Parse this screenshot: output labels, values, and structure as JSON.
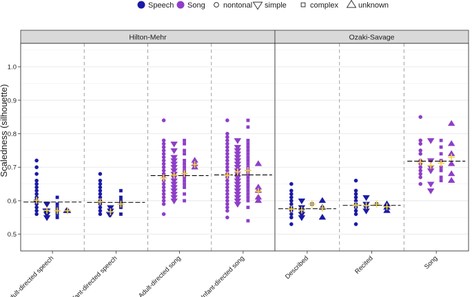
{
  "chart_data": {
    "type": "scatter",
    "ylabel": "Scaledness (silhouette)",
    "xlabel": "",
    "ylim": [
      0.45,
      1.07
    ],
    "yticks": [
      0.5,
      0.6,
      0.7,
      0.8,
      0.9,
      1.0
    ],
    "ytick_labels": [
      "0.5",
      "0.6",
      "0.7",
      "0.8",
      "0.9",
      "1.0"
    ],
    "grid": true,
    "legend": {
      "placement": "top-center",
      "color_entries": [
        {
          "label": "Speech",
          "color": "#1a1aa6"
        },
        {
          "label": "Song",
          "color": "#8e3ec8"
        }
      ],
      "shape_entries": [
        {
          "label": "nontonal",
          "shape": "circle"
        },
        {
          "label": "simple",
          "shape": "triangle-down"
        },
        {
          "label": "complex",
          "shape": "square"
        },
        {
          "label": "unknown",
          "shape": "triangle-up"
        }
      ]
    },
    "colors": {
      "Speech": "#1a1aa6",
      "Song": "#8e3ec8",
      "mean": "#f3d43a",
      "median_line": "#000000"
    },
    "shapes": [
      "nontonal",
      "simple",
      "complex",
      "unknown"
    ],
    "panels": [
      {
        "name": "Hilton-Mehr",
        "categories": [
          {
            "label": "Adult-directed speech",
            "type": "Speech",
            "median": 0.596,
            "groups": [
              {
                "shape": "nontonal",
                "values": [
                  0.72,
                  0.7,
                  0.68,
                  0.66,
                  0.65,
                  0.64,
                  0.63,
                  0.62,
                  0.61,
                  0.6,
                  0.6,
                  0.59,
                  0.58,
                  0.57,
                  0.56
                ],
                "mean": 0.601
              },
              {
                "shape": "simple",
                "values": [
                  0.59,
                  0.57,
                  0.57,
                  0.56,
                  0.55
                ],
                "mean": 0.571
              },
              {
                "shape": "complex",
                "values": [
                  0.61,
                  0.59,
                  0.58,
                  0.57,
                  0.56,
                  0.55
                ],
                "mean": 0.57
              },
              {
                "shape": "unknown",
                "values": [
                  0.57,
                  0.57
                ],
                "mean": 0.57
              }
            ]
          },
          {
            "label": "Infant-directed speech",
            "type": "Speech",
            "median": 0.595,
            "groups": [
              {
                "shape": "nontonal",
                "values": [
                  0.68,
                  0.66,
                  0.65,
                  0.64,
                  0.63,
                  0.62,
                  0.61,
                  0.6,
                  0.59,
                  0.58,
                  0.57,
                  0.56
                ],
                "mean": 0.597
              },
              {
                "shape": "simple",
                "values": [
                  0.58,
                  0.57,
                  0.56,
                  0.56
                ],
                "mean": 0.567
              },
              {
                "shape": "complex",
                "values": [
                  0.63,
                  0.61,
                  0.6,
                  0.59,
                  0.58,
                  0.56
                ],
                "mean": 0.59
              },
              {
                "shape": "unknown",
                "values": [],
                "mean": null
              }
            ]
          },
          {
            "label": "Adult-directed song",
            "type": "Song",
            "median": 0.675,
            "groups": [
              {
                "shape": "nontonal",
                "values": [
                  0.84,
                  0.78,
                  0.77,
                  0.76,
                  0.75,
                  0.74,
                  0.73,
                  0.72,
                  0.71,
                  0.7,
                  0.69,
                  0.68,
                  0.67,
                  0.66,
                  0.65,
                  0.64,
                  0.63,
                  0.62,
                  0.61,
                  0.6,
                  0.59,
                  0.56
                ],
                "mean": 0.668
              },
              {
                "shape": "simple",
                "values": [
                  0.77,
                  0.75,
                  0.73,
                  0.72,
                  0.71,
                  0.7,
                  0.69,
                  0.68,
                  0.67,
                  0.66,
                  0.65,
                  0.64,
                  0.63,
                  0.62,
                  0.61,
                  0.6
                ],
                "mean": 0.676
              },
              {
                "shape": "complex",
                "values": [
                  0.78,
                  0.77,
                  0.75,
                  0.74,
                  0.72,
                  0.71,
                  0.7,
                  0.69,
                  0.68,
                  0.67,
                  0.66,
                  0.65,
                  0.64,
                  0.62,
                  0.6
                ],
                "mean": 0.681
              },
              {
                "shape": "unknown",
                "values": [
                  0.72,
                  0.71,
                  0.7
                ],
                "mean": 0.708
              }
            ]
          },
          {
            "label": "Infant-directed song",
            "type": "Song",
            "median": 0.677,
            "groups": [
              {
                "shape": "nontonal",
                "values": [
                  0.84,
                  0.8,
                  0.79,
                  0.78,
                  0.77,
                  0.76,
                  0.75,
                  0.74,
                  0.73,
                  0.72,
                  0.71,
                  0.7,
                  0.69,
                  0.68,
                  0.67,
                  0.66,
                  0.65,
                  0.64,
                  0.63,
                  0.62,
                  0.61,
                  0.6,
                  0.59,
                  0.58,
                  0.57,
                  0.55
                ],
                "mean": 0.676
              },
              {
                "shape": "simple",
                "values": [
                  0.78,
                  0.76,
                  0.75,
                  0.74,
                  0.73,
                  0.72,
                  0.71,
                  0.7,
                  0.69,
                  0.68,
                  0.67,
                  0.66,
                  0.65,
                  0.64,
                  0.63,
                  0.62,
                  0.61,
                  0.6,
                  0.59
                ],
                "mean": 0.686
              },
              {
                "shape": "complex",
                "values": [
                  0.84,
                  0.82,
                  0.78,
                  0.77,
                  0.76,
                  0.75,
                  0.74,
                  0.73,
                  0.72,
                  0.71,
                  0.7,
                  0.69,
                  0.68,
                  0.67,
                  0.66,
                  0.65,
                  0.64,
                  0.63,
                  0.62,
                  0.61,
                  0.6,
                  0.58,
                  0.54
                ],
                "mean": 0.69
              },
              {
                "shape": "unknown",
                "values": [
                  0.71,
                  0.64,
                  0.63,
                  0.61,
                  0.6
                ],
                "mean": 0.628
              }
            ]
          }
        ]
      },
      {
        "name": "Ozaki-Savage",
        "categories": [
          {
            "label": "Described",
            "type": "Speech",
            "median": 0.576,
            "groups": [
              {
                "shape": "nontonal",
                "values": [
                  0.65,
                  0.63,
                  0.62,
                  0.61,
                  0.6,
                  0.59,
                  0.58,
                  0.57,
                  0.56,
                  0.55,
                  0.53
                ],
                "mean": 0.575
              },
              {
                "shape": "simple",
                "values": [
                  0.6,
                  0.58,
                  0.57,
                  0.56,
                  0.55
                ],
                "mean": 0.572
              },
              {
                "shape": "complex",
                "values": [
                  0.59
                ],
                "mean": 0.59
              },
              {
                "shape": "unknown",
                "values": [
                  0.6,
                  0.58,
                  0.55
                ],
                "mean": 0.578
              }
            ]
          },
          {
            "label": "Recited",
            "type": "Speech",
            "median": 0.586,
            "groups": [
              {
                "shape": "nontonal",
                "values": [
                  0.66,
                  0.63,
                  0.62,
                  0.61,
                  0.6,
                  0.59,
                  0.58,
                  0.57,
                  0.56,
                  0.53
                ],
                "mean": 0.587
              },
              {
                "shape": "simple",
                "values": [
                  0.61,
                  0.59,
                  0.58,
                  0.57
                ],
                "mean": 0.585
              },
              {
                "shape": "complex",
                "values": [
                  0.59
                ],
                "mean": 0.59
              },
              {
                "shape": "unknown",
                "values": [
                  0.59,
                  0.58,
                  0.57
                ],
                "mean": 0.582
              }
            ]
          },
          {
            "label": "Song",
            "type": "Song",
            "median": 0.718,
            "groups": [
              {
                "shape": "nontonal",
                "values": [
                  0.85,
                  0.78,
                  0.77,
                  0.75,
                  0.74,
                  0.72,
                  0.71,
                  0.7,
                  0.69,
                  0.68,
                  0.67,
                  0.65
                ],
                "mean": 0.715
              },
              {
                "shape": "simple",
                "values": [
                  0.78,
                  0.72,
                  0.7,
                  0.69,
                  0.65,
                  0.63
                ],
                "mean": 0.705
              },
              {
                "shape": "complex",
                "values": [
                  0.78,
                  0.76,
                  0.74,
                  0.72,
                  0.7,
                  0.69,
                  0.67,
                  0.66
                ],
                "mean": 0.712
              },
              {
                "shape": "unknown",
                "values": [
                  0.83,
                  0.77,
                  0.74,
                  0.71,
                  0.68,
                  0.66
                ],
                "mean": 0.73
              }
            ]
          }
        ]
      }
    ]
  }
}
